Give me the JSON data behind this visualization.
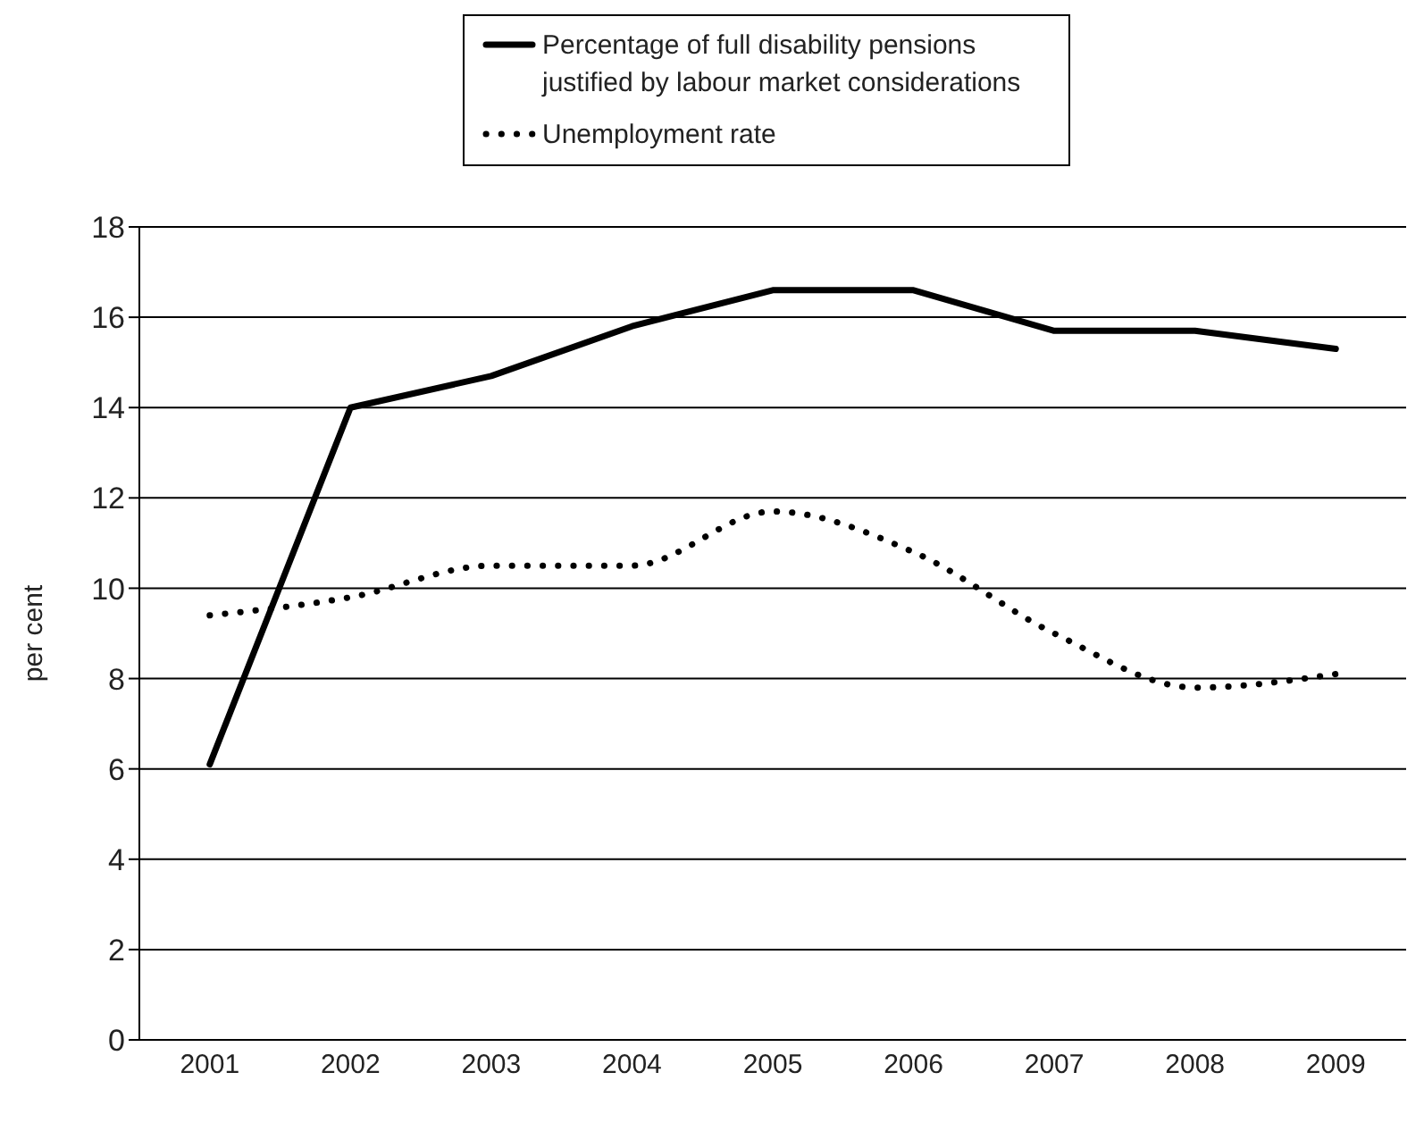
{
  "chart_data": {
    "type": "line",
    "ylabel": "per cent",
    "categories": [
      "2001",
      "2002",
      "2003",
      "2004",
      "2005",
      "2006",
      "2007",
      "2008",
      "2009"
    ],
    "series": [
      {
        "name": "Percentage of full disability pensions justified by labour market considerations",
        "color": "#000000",
        "line_style": "solid",
        "values": [
          6.1,
          14.0,
          14.7,
          15.8,
          16.6,
          16.6,
          15.7,
          15.7,
          15.3
        ]
      },
      {
        "name": "Unemployment rate",
        "color": "#000000",
        "line_style": "dotted",
        "values": [
          9.4,
          9.8,
          10.5,
          10.5,
          11.7,
          10.8,
          9.0,
          7.8,
          8.1
        ]
      }
    ],
    "ylim": [
      0,
      18
    ],
    "yticks": [
      0,
      2,
      4,
      6,
      8,
      10,
      12,
      14,
      16,
      18
    ],
    "grid": "y",
    "legend": "top",
    "marker": "none"
  }
}
